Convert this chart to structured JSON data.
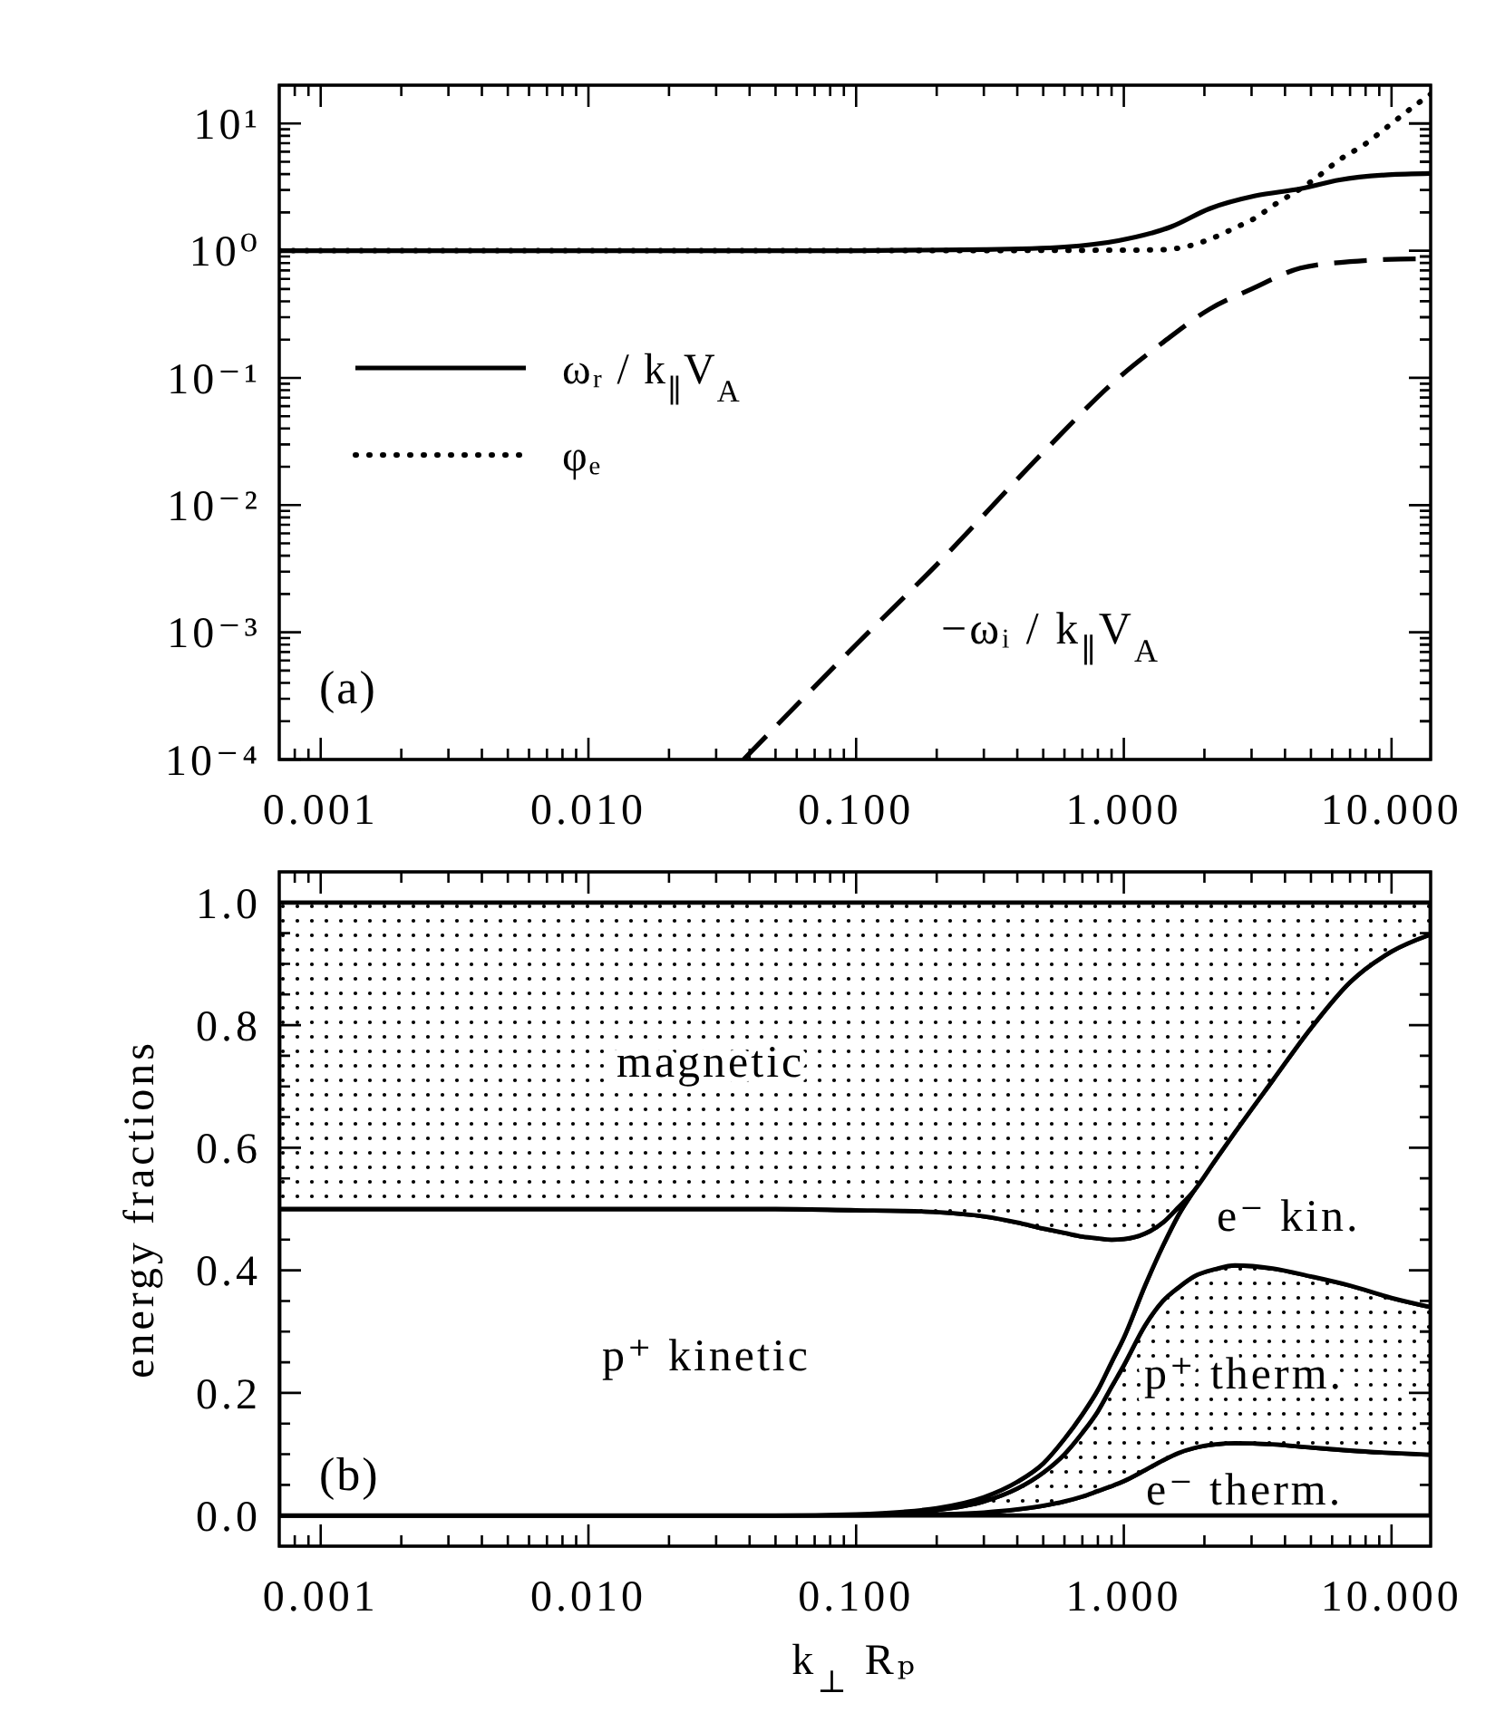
{
  "chart_data": [
    {
      "type": "line",
      "log": "xy",
      "xlim": [
        0.0007,
        14
      ],
      "ylim": [
        0.0001,
        20
      ],
      "xticks": [
        {
          "value": 0.0008,
          "label": null
        },
        {
          "value": 0.0009,
          "label": null
        },
        0.001,
        {
          "value": 0.002,
          "label": null
        },
        {
          "value": 0.003,
          "label": null
        },
        {
          "value": 0.004,
          "label": null
        },
        {
          "value": 0.005,
          "label": null
        },
        {
          "value": 0.006,
          "label": null
        },
        {
          "value": 0.007,
          "label": null
        },
        {
          "value": 0.008,
          "label": null
        },
        {
          "value": 0.009,
          "label": null
        },
        {
          "value": 0.01,
          "label": "0.010"
        },
        {
          "value": 0.02,
          "label": null
        },
        {
          "value": 0.03,
          "label": null
        },
        {
          "value": 0.04,
          "label": null
        },
        {
          "value": 0.05,
          "label": null
        },
        {
          "value": 0.06,
          "label": null
        },
        {
          "value": 0.07,
          "label": null
        },
        {
          "value": 0.08,
          "label": null
        },
        {
          "value": 0.09,
          "label": null
        },
        {
          "value": 0.1,
          "label": "0.100"
        },
        {
          "value": 0.2,
          "label": null
        },
        {
          "value": 0.3,
          "label": null
        },
        {
          "value": 0.4,
          "label": null
        },
        {
          "value": 0.5,
          "label": null
        },
        {
          "value": 0.6,
          "label": null
        },
        {
          "value": 0.7,
          "label": null
        },
        {
          "value": 0.8,
          "label": null
        },
        {
          "value": 0.9,
          "label": null
        },
        {
          "value": 1,
          "label": "1.000"
        },
        {
          "value": 2,
          "label": null
        },
        {
          "value": 3,
          "label": null
        },
        {
          "value": 4,
          "label": null
        },
        {
          "value": 5,
          "label": null
        },
        {
          "value": 6,
          "label": null
        },
        {
          "value": 7,
          "label": null
        },
        {
          "value": 8,
          "label": null
        },
        {
          "value": 9,
          "label": null
        },
        {
          "value": 10,
          "label": "10.000"
        }
      ],
      "yticks": [
        {
          "value": 0.0001,
          "label": "10⁻⁴"
        },
        {
          "value": 0.0002,
          "label": null
        },
        {
          "value": 0.0003,
          "label": null
        },
        {
          "value": 0.0004,
          "label": null
        },
        {
          "value": 0.0005,
          "label": null
        },
        {
          "value": 0.0006,
          "label": null
        },
        {
          "value": 0.0007,
          "label": null
        },
        {
          "value": 0.0008,
          "label": null
        },
        {
          "value": 0.0009,
          "label": null
        },
        {
          "value": 0.001,
          "label": "10⁻³"
        },
        {
          "value": 0.002,
          "label": null
        },
        {
          "value": 0.003,
          "label": null
        },
        {
          "value": 0.004,
          "label": null
        },
        {
          "value": 0.005,
          "label": null
        },
        {
          "value": 0.006,
          "label": null
        },
        {
          "value": 0.007,
          "label": null
        },
        {
          "value": 0.008,
          "label": null
        },
        {
          "value": 0.009,
          "label": null
        },
        {
          "value": 0.01,
          "label": "10⁻²"
        },
        {
          "value": 0.02,
          "label": null
        },
        {
          "value": 0.03,
          "label": null
        },
        {
          "value": 0.04,
          "label": null
        },
        {
          "value": 0.05,
          "label": null
        },
        {
          "value": 0.06,
          "label": null
        },
        {
          "value": 0.07,
          "label": null
        },
        {
          "value": 0.08,
          "label": null
        },
        {
          "value": 0.09,
          "label": null
        },
        {
          "value": 0.1,
          "label": "10⁻¹"
        },
        {
          "value": 0.2,
          "label": null
        },
        {
          "value": 0.3,
          "label": null
        },
        {
          "value": 0.4,
          "label": null
        },
        {
          "value": 0.5,
          "label": null
        },
        {
          "value": 0.6,
          "label": null
        },
        {
          "value": 0.7,
          "label": null
        },
        {
          "value": 0.8,
          "label": null
        },
        {
          "value": 0.9,
          "label": null
        },
        {
          "value": 1,
          "label": "10⁰"
        },
        {
          "value": 2,
          "label": null
        },
        {
          "value": 3,
          "label": null
        },
        {
          "value": 4,
          "label": null
        },
        {
          "value": 5,
          "label": null
        },
        {
          "value": 6,
          "label": null
        },
        {
          "value": 7,
          "label": null
        },
        {
          "value": 8,
          "label": null
        },
        {
          "value": 9,
          "label": null
        },
        {
          "value": 10,
          "label": "10¹"
        }
      ],
      "legend": "left",
      "annotations": [
        "(a)"
      ],
      "series": [
        {
          "name": "ωᵣ / k$_{∥}$V$_{A}$",
          "color": "#000000",
          "line_style": "solid",
          "x": [
            0.0007,
            0.1,
            0.3,
            0.6,
            0.955,
            1.5,
            2.09,
            3.1,
            4.57,
            6.4,
            9.7,
            14
          ],
          "values": [
            1,
            1,
            1.02,
            1.07,
            1.2,
            1.54,
            2.14,
            2.7,
            3.07,
            3.6,
            3.95,
            4.05
          ]
        },
        {
          "name": "φₑ",
          "color": "#000000",
          "line_style": "dotted",
          "x": [
            0.0007,
            0.1,
            1,
            1.42,
            1.65,
            2.03,
            2.65,
            3.09,
            3.61,
            4.57,
            5.2,
            6.4,
            7.9,
            9.7,
            12.6,
            14
          ],
          "values": [
            1,
            1,
            1.01,
            1.02,
            1.06,
            1.2,
            1.54,
            1.8,
            2.26,
            3.07,
            3.7,
            5.2,
            6.8,
            9.5,
            14.5,
            17
          ]
        },
        {
          "name": "−ωᵢ / k$_{∥}$V$_{A}$",
          "color": "#000000",
          "line_style": "dashed",
          "x": [
            0.038,
            0.1,
            0.2,
            0.5,
            0.955,
            1.4,
            2.09,
            3,
            4.57,
            7,
            10.8,
            14
          ],
          "values": [
            0.0001,
            0.0008,
            0.0034,
            0.026,
            0.1,
            0.19,
            0.347,
            0.5,
            0.73,
            0.82,
            0.86,
            0.865
          ]
        }
      ]
    },
    {
      "type": "area",
      "stacked": true,
      "log": "x",
      "xlim": [
        0.0007,
        14
      ],
      "ylim": [
        -0.05,
        1.05
      ],
      "xticks": [
        {
          "value": 0.0008,
          "label": null
        },
        {
          "value": 0.0009,
          "label": null
        },
        0.001,
        {
          "value": 0.002,
          "label": null
        },
        {
          "value": 0.003,
          "label": null
        },
        {
          "value": 0.004,
          "label": null
        },
        {
          "value": 0.005,
          "label": null
        },
        {
          "value": 0.006,
          "label": null
        },
        {
          "value": 0.007,
          "label": null
        },
        {
          "value": 0.008,
          "label": null
        },
        {
          "value": 0.009,
          "label": null
        },
        {
          "value": 0.01,
          "label": "0.010"
        },
        {
          "value": 0.02,
          "label": null
        },
        {
          "value": 0.03,
          "label": null
        },
        {
          "value": 0.04,
          "label": null
        },
        {
          "value": 0.05,
          "label": null
        },
        {
          "value": 0.06,
          "label": null
        },
        {
          "value": 0.07,
          "label": null
        },
        {
          "value": 0.08,
          "label": null
        },
        {
          "value": 0.09,
          "label": null
        },
        {
          "value": 0.1,
          "label": "0.100"
        },
        {
          "value": 0.2,
          "label": null
        },
        {
          "value": 0.3,
          "label": null
        },
        {
          "value": 0.4,
          "label": null
        },
        {
          "value": 0.5,
          "label": null
        },
        {
          "value": 0.6,
          "label": null
        },
        {
          "value": 0.7,
          "label": null
        },
        {
          "value": 0.8,
          "label": null
        },
        {
          "value": 0.9,
          "label": null
        },
        {
          "value": 1,
          "label": "1.000"
        },
        {
          "value": 2,
          "label": null
        },
        {
          "value": 3,
          "label": null
        },
        {
          "value": 4,
          "label": null
        },
        {
          "value": 5,
          "label": null
        },
        {
          "value": 6,
          "label": null
        },
        {
          "value": 7,
          "label": null
        },
        {
          "value": 8,
          "label": null
        },
        {
          "value": 9,
          "label": null
        },
        {
          "value": 10,
          "label": "10.000"
        }
      ],
      "yticks": [
        {
          "value": 0,
          "label": "0.0"
        },
        {
          "value": 0.05,
          "label": null
        },
        {
          "value": 0.1,
          "label": null
        },
        {
          "value": 0.15,
          "label": null
        },
        0.2,
        {
          "value": 0.25,
          "label": null
        },
        {
          "value": 0.3,
          "label": null
        },
        {
          "value": 0.35,
          "label": null
        },
        0.4,
        {
          "value": 0.45,
          "label": null
        },
        {
          "value": 0.5,
          "label": null
        },
        {
          "value": 0.55,
          "label": null
        },
        0.6,
        {
          "value": 0.65,
          "label": null
        },
        {
          "value": 0.7,
          "label": null
        },
        {
          "value": 0.75,
          "label": null
        },
        0.8,
        {
          "value": 0.85,
          "label": null
        },
        {
          "value": 0.9,
          "label": null
        },
        {
          "value": 0.95,
          "label": null
        },
        {
          "value": 1,
          "label": "1.0"
        }
      ],
      "xlabel": "k$_{⊥}$ Rₚ",
      "ylabel": "energy fractions",
      "annotations": [
        "(b)"
      ],
      "x": [
        0.0007,
        0.01,
        0.05,
        0.1,
        0.15,
        0.2,
        0.3,
        0.4,
        0.5,
        0.6,
        0.7,
        0.8,
        0.9,
        1,
        1.2,
        1.4,
        1.6,
        1.83,
        2.2,
        2.6,
        3.6,
        5,
        7,
        10,
        14
      ],
      "series": [
        {
          "name": "e⁻ therm.",
          "color": "#ffffff",
          "values": [
            0,
            0,
            0,
            0,
            0.001,
            0.002,
            0.005,
            0.01,
            0.016,
            0.023,
            0.031,
            0.04,
            0.048,
            0.056,
            0.074,
            0.09,
            0.102,
            0.11,
            0.116,
            0.118,
            0.116,
            0.111,
            0.106,
            0.102,
            0.099
          ]
        },
        {
          "name": "p⁺ therm.",
          "color": "#000000",
          "values": [
            0,
            0,
            0,
            0.001,
            0.003,
            0.007,
            0.018,
            0.034,
            0.054,
            0.077,
            0.104,
            0.13,
            0.162,
            0.189,
            0.236,
            0.26,
            0.27,
            0.28,
            0.286,
            0.29,
            0.287,
            0.279,
            0.269,
            0.253,
            0.241
          ]
        },
        {
          "name": "e⁻ kin.",
          "color": "#ffffff",
          "values": [
            0,
            0,
            0,
            0.001,
            0.002,
            0.003,
            0.007,
            0.011,
            0.015,
            0.025,
            0.03,
            0.035,
            0.04,
            0.045,
            0.065,
            0.09,
            0.118,
            0.14,
            0.178,
            0.217,
            0.307,
            0.405,
            0.495,
            0.565,
            0.608
          ]
        },
        {
          "name": "p⁺ kinetic",
          "color": "#ffffff",
          "values": [
            0.5,
            0.5,
            0.5,
            0.496,
            0.491,
            0.483,
            0.458,
            0.423,
            0.383,
            0.336,
            0.29,
            0.247,
            0.2,
            0.161,
            0.085,
            0.038,
            0.013,
            0,
            null,
            null,
            null,
            null,
            null,
            null,
            null
          ]
        },
        {
          "name": "magnetic",
          "color": "#000000",
          "values": [
            0.5,
            0.5,
            0.5,
            0.502,
            0.503,
            0.505,
            0.512,
            0.522,
            0.532,
            0.539,
            0.545,
            0.548,
            0.55,
            0.549,
            0.54,
            0.522,
            0.497,
            0.47,
            0.42,
            0.375,
            0.29,
            0.205,
            0.13,
            0.08,
            0.052
          ]
        }
      ]
    }
  ]
}
